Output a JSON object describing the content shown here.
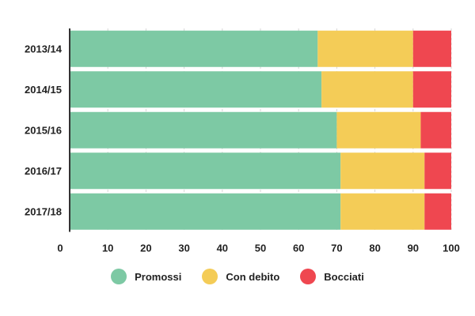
{
  "chart_data": {
    "type": "bar",
    "orientation": "horizontal",
    "stacked": true,
    "categories": [
      "2013/14",
      "2014/15",
      "2015/16",
      "2016/17",
      "2017/18"
    ],
    "series": [
      {
        "name": "Promossi",
        "color": "#7dc9a4",
        "values": [
          65,
          66,
          70,
          71,
          71
        ]
      },
      {
        "name": "Con debito",
        "color": "#f4cc57",
        "values": [
          25,
          24,
          22,
          22,
          22
        ]
      },
      {
        "name": "Bocciati",
        "color": "#ef4750",
        "values": [
          10,
          10,
          8,
          7,
          7
        ]
      }
    ],
    "x_ticks": [
      0,
      10,
      20,
      30,
      40,
      50,
      60,
      70,
      80,
      90,
      100
    ],
    "xlim": [
      0,
      100
    ],
    "grid": true,
    "legend_position": "bottom-center"
  }
}
